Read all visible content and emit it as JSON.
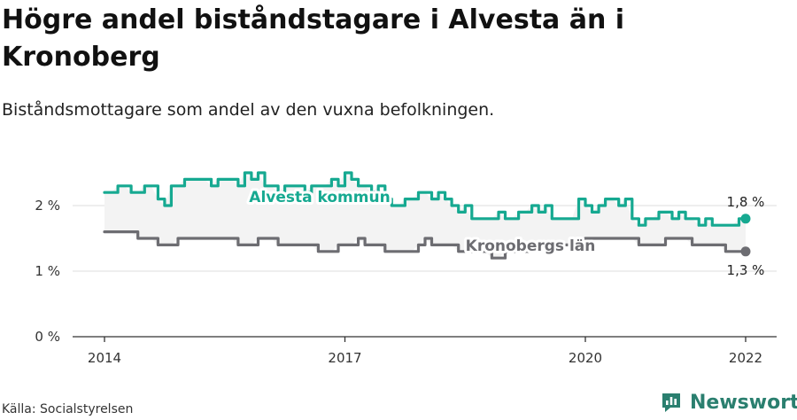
{
  "title": "Högre andel biståndstagare i Alvesta än i Kronoberg",
  "subtitle": "Biståndsmottagare som andel av den vuxna befolkningen.",
  "source": "Källa: Socialstyrelsen",
  "brand": "Newsworthy",
  "colors": {
    "alvesta": "#16a991",
    "kronoberg": "#6d6d72",
    "band": "#f3f3f3",
    "grid": "#dddddd",
    "axis": "#333333",
    "brand": "#2a7f6f"
  },
  "chart_data": {
    "type": "line",
    "title": "Högre andel biståndstagare i Alvesta än i Kronoberg",
    "subtitle": "Biståndsmottagare som andel av den vuxna befolkningen.",
    "x_unit": "year (monthly)",
    "y_unit": "%",
    "ylim": [
      0,
      3
    ],
    "xlim": [
      2013.7,
      2022.45
    ],
    "grid": true,
    "y_ticks": [
      {
        "value": 0,
        "label": "0 %"
      },
      {
        "value": 1,
        "label": "1 %"
      },
      {
        "value": 2,
        "label": "2 %"
      }
    ],
    "x_ticks": [
      {
        "value": 2014,
        "label": "2014"
      },
      {
        "value": 2017,
        "label": "2017"
      },
      {
        "value": 2020,
        "label": "2020"
      },
      {
        "value": 2022,
        "label": "2022"
      }
    ],
    "series": [
      {
        "name": "Alvesta kommun",
        "color": "#16a991",
        "end_label": "1,8 %",
        "x": [
          2014.0,
          2014.083,
          2014.167,
          2014.25,
          2014.333,
          2014.417,
          2014.5,
          2014.583,
          2014.667,
          2014.75,
          2014.833,
          2014.917,
          2015.0,
          2015.083,
          2015.167,
          2015.25,
          2015.333,
          2015.417,
          2015.5,
          2015.583,
          2015.667,
          2015.75,
          2015.833,
          2015.917,
          2016.0,
          2016.083,
          2016.167,
          2016.25,
          2016.333,
          2016.417,
          2016.5,
          2016.583,
          2016.667,
          2016.75,
          2016.833,
          2016.917,
          2017.0,
          2017.083,
          2017.167,
          2017.25,
          2017.333,
          2017.417,
          2017.5,
          2017.583,
          2017.667,
          2017.75,
          2017.833,
          2017.917,
          2018.0,
          2018.083,
          2018.167,
          2018.25,
          2018.333,
          2018.417,
          2018.5,
          2018.583,
          2018.667,
          2018.75,
          2018.833,
          2018.917,
          2019.0,
          2019.083,
          2019.167,
          2019.25,
          2019.333,
          2019.417,
          2019.5,
          2019.583,
          2019.667,
          2019.75,
          2019.833,
          2019.917,
          2020.0,
          2020.083,
          2020.167,
          2020.25,
          2020.333,
          2020.417,
          2020.5,
          2020.583,
          2020.667,
          2020.75,
          2020.833,
          2020.917,
          2021.0,
          2021.083,
          2021.167,
          2021.25,
          2021.333,
          2021.417,
          2021.5,
          2021.583,
          2021.667,
          2021.75,
          2021.833,
          2021.917,
          2022.0
        ],
        "values": [
          2.2,
          2.2,
          2.3,
          2.3,
          2.2,
          2.2,
          2.3,
          2.3,
          2.1,
          2.0,
          2.3,
          2.3,
          2.4,
          2.4,
          2.4,
          2.4,
          2.3,
          2.4,
          2.4,
          2.4,
          2.3,
          2.5,
          2.4,
          2.5,
          2.3,
          2.3,
          2.2,
          2.3,
          2.3,
          2.3,
          2.2,
          2.3,
          2.3,
          2.3,
          2.4,
          2.3,
          2.5,
          2.4,
          2.3,
          2.3,
          2.2,
          2.3,
          2.1,
          2.0,
          2.0,
          2.1,
          2.1,
          2.2,
          2.2,
          2.1,
          2.2,
          2.1,
          2.0,
          1.9,
          2.0,
          1.8,
          1.8,
          1.8,
          1.8,
          1.9,
          1.8,
          1.8,
          1.9,
          1.9,
          2.0,
          1.9,
          2.0,
          1.8,
          1.8,
          1.8,
          1.8,
          2.1,
          2.0,
          1.9,
          2.0,
          2.1,
          2.1,
          2.0,
          2.1,
          1.8,
          1.7,
          1.8,
          1.8,
          1.9,
          1.9,
          1.8,
          1.9,
          1.8,
          1.8,
          1.7,
          1.8,
          1.7,
          1.7,
          1.7,
          1.7,
          1.8,
          1.8
        ]
      },
      {
        "name": "Kronobergs län",
        "color": "#6d6d72",
        "end_label": "1,3 %",
        "x": [
          2014.0,
          2014.083,
          2014.167,
          2014.25,
          2014.333,
          2014.417,
          2014.5,
          2014.583,
          2014.667,
          2014.75,
          2014.833,
          2014.917,
          2015.0,
          2015.083,
          2015.167,
          2015.25,
          2015.333,
          2015.417,
          2015.5,
          2015.583,
          2015.667,
          2015.75,
          2015.833,
          2015.917,
          2016.0,
          2016.083,
          2016.167,
          2016.25,
          2016.333,
          2016.417,
          2016.5,
          2016.583,
          2016.667,
          2016.75,
          2016.833,
          2016.917,
          2017.0,
          2017.083,
          2017.167,
          2017.25,
          2017.333,
          2017.417,
          2017.5,
          2017.583,
          2017.667,
          2017.75,
          2017.833,
          2017.917,
          2018.0,
          2018.083,
          2018.167,
          2018.25,
          2018.333,
          2018.417,
          2018.5,
          2018.583,
          2018.667,
          2018.75,
          2018.833,
          2018.917,
          2019.0,
          2019.083,
          2019.167,
          2019.25,
          2019.333,
          2019.417,
          2019.5,
          2019.583,
          2019.667,
          2019.75,
          2019.833,
          2019.917,
          2020.0,
          2020.083,
          2020.167,
          2020.25,
          2020.333,
          2020.417,
          2020.5,
          2020.583,
          2020.667,
          2020.75,
          2020.833,
          2020.917,
          2021.0,
          2021.083,
          2021.167,
          2021.25,
          2021.333,
          2021.417,
          2021.5,
          2021.583,
          2021.667,
          2021.75,
          2021.833,
          2021.917,
          2022.0
        ],
        "values": [
          1.6,
          1.6,
          1.6,
          1.6,
          1.6,
          1.5,
          1.5,
          1.5,
          1.4,
          1.4,
          1.4,
          1.5,
          1.5,
          1.5,
          1.5,
          1.5,
          1.5,
          1.5,
          1.5,
          1.5,
          1.4,
          1.4,
          1.4,
          1.5,
          1.5,
          1.5,
          1.4,
          1.4,
          1.4,
          1.4,
          1.4,
          1.4,
          1.3,
          1.3,
          1.3,
          1.4,
          1.4,
          1.4,
          1.5,
          1.4,
          1.4,
          1.4,
          1.3,
          1.3,
          1.3,
          1.3,
          1.3,
          1.4,
          1.5,
          1.4,
          1.4,
          1.4,
          1.4,
          1.3,
          1.3,
          1.3,
          1.3,
          1.3,
          1.2,
          1.2,
          1.3,
          1.3,
          1.3,
          1.3,
          1.4,
          1.4,
          1.4,
          1.4,
          1.4,
          1.4,
          1.4,
          1.4,
          1.5,
          1.5,
          1.5,
          1.5,
          1.5,
          1.5,
          1.5,
          1.5,
          1.4,
          1.4,
          1.4,
          1.4,
          1.5,
          1.5,
          1.5,
          1.5,
          1.4,
          1.4,
          1.4,
          1.4,
          1.4,
          1.3,
          1.3,
          1.3,
          1.3
        ]
      }
    ]
  }
}
